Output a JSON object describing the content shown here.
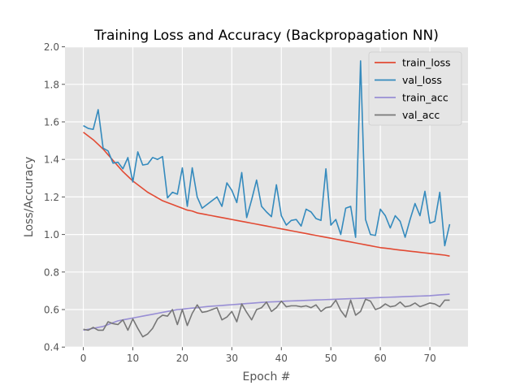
{
  "chart_data": {
    "type": "line",
    "title": "Training Loss and Accuracy (Backpropagation NN)",
    "xlabel": "Epoch #",
    "ylabel": "Loss/Accuracy",
    "xlim": [
      -3.7,
      77.7
    ],
    "ylim": [
      0.4,
      2.0
    ],
    "xticks": [
      0,
      10,
      20,
      30,
      40,
      50,
      60,
      70
    ],
    "yticks": [
      "0.4",
      "0.6",
      "0.8",
      "1.0",
      "1.2",
      "1.4",
      "1.6",
      "1.8",
      "2.0"
    ],
    "grid": true,
    "legend_position": "top-right",
    "x": [
      0,
      1,
      2,
      3,
      4,
      5,
      6,
      7,
      8,
      9,
      10,
      11,
      12,
      13,
      14,
      15,
      16,
      17,
      18,
      19,
      20,
      21,
      22,
      23,
      24,
      25,
      26,
      27,
      28,
      29,
      30,
      31,
      32,
      33,
      34,
      35,
      36,
      37,
      38,
      39,
      40,
      41,
      42,
      43,
      44,
      45,
      46,
      47,
      48,
      49,
      50,
      51,
      52,
      53,
      54,
      55,
      56,
      57,
      58,
      59,
      60,
      61,
      62,
      63,
      64,
      65,
      66,
      67,
      68,
      69,
      70,
      71,
      72,
      73,
      74
    ],
    "series": [
      {
        "name": "train_loss",
        "color": "#E24A33",
        "values": [
          1.545,
          1.525,
          1.505,
          1.48,
          1.455,
          1.425,
          1.395,
          1.365,
          1.335,
          1.31,
          1.285,
          1.265,
          1.245,
          1.225,
          1.21,
          1.195,
          1.18,
          1.17,
          1.16,
          1.15,
          1.14,
          1.13,
          1.125,
          1.115,
          1.11,
          1.105,
          1.1,
          1.095,
          1.09,
          1.085,
          1.08,
          1.075,
          1.07,
          1.065,
          1.06,
          1.055,
          1.05,
          1.045,
          1.04,
          1.035,
          1.03,
          1.025,
          1.02,
          1.015,
          1.01,
          1.005,
          1.0,
          0.995,
          0.99,
          0.985,
          0.98,
          0.975,
          0.97,
          0.965,
          0.96,
          0.955,
          0.95,
          0.945,
          0.94,
          0.935,
          0.93,
          0.927,
          0.924,
          0.92,
          0.917,
          0.914,
          0.911,
          0.908,
          0.905,
          0.902,
          0.899,
          0.896,
          0.893,
          0.89,
          0.885
        ]
      },
      {
        "name": "val_loss",
        "color": "#348ABD",
        "values": [
          1.58,
          1.565,
          1.56,
          1.665,
          1.46,
          1.445,
          1.38,
          1.385,
          1.35,
          1.41,
          1.28,
          1.44,
          1.37,
          1.375,
          1.41,
          1.4,
          1.415,
          1.195,
          1.225,
          1.215,
          1.355,
          1.15,
          1.355,
          1.2,
          1.14,
          1.16,
          1.18,
          1.2,
          1.15,
          1.275,
          1.235,
          1.17,
          1.33,
          1.09,
          1.185,
          1.29,
          1.15,
          1.12,
          1.095,
          1.265,
          1.1,
          1.05,
          1.075,
          1.08,
          1.045,
          1.135,
          1.12,
          1.085,
          1.075,
          1.35,
          1.05,
          1.08,
          1.0,
          1.14,
          1.15,
          0.985,
          1.925,
          1.08,
          1.0,
          0.995,
          1.135,
          1.1,
          1.035,
          1.1,
          1.07,
          0.985,
          1.08,
          1.165,
          1.1,
          1.23,
          1.06,
          1.07,
          1.225,
          0.94,
          1.055
        ]
      },
      {
        "name": "train_acc",
        "color": "#988ED5",
        "values": [
          0.49,
          0.495,
          0.5,
          0.505,
          0.51,
          0.52,
          0.53,
          0.54,
          0.545,
          0.55,
          0.555,
          0.56,
          0.565,
          0.57,
          0.575,
          0.58,
          0.585,
          0.59,
          0.595,
          0.6,
          0.602,
          0.605,
          0.608,
          0.61,
          0.613,
          0.616,
          0.618,
          0.62,
          0.622,
          0.624,
          0.626,
          0.628,
          0.63,
          0.632,
          0.634,
          0.636,
          0.638,
          0.64,
          0.641,
          0.642,
          0.643,
          0.645,
          0.646,
          0.647,
          0.648,
          0.649,
          0.65,
          0.651,
          0.652,
          0.653,
          0.654,
          0.655,
          0.656,
          0.657,
          0.658,
          0.659,
          0.66,
          0.661,
          0.662,
          0.663,
          0.664,
          0.665,
          0.666,
          0.667,
          0.668,
          0.669,
          0.67,
          0.671,
          0.672,
          0.673,
          0.674,
          0.676,
          0.678,
          0.68,
          0.682
        ]
      },
      {
        "name": "val_acc",
        "color": "#777777",
        "values": [
          0.495,
          0.49,
          0.505,
          0.49,
          0.49,
          0.535,
          0.525,
          0.52,
          0.545,
          0.49,
          0.55,
          0.5,
          0.455,
          0.47,
          0.5,
          0.55,
          0.57,
          0.565,
          0.6,
          0.52,
          0.6,
          0.515,
          0.58,
          0.625,
          0.585,
          0.59,
          0.6,
          0.61,
          0.545,
          0.56,
          0.59,
          0.535,
          0.63,
          0.585,
          0.545,
          0.6,
          0.61,
          0.64,
          0.59,
          0.61,
          0.645,
          0.615,
          0.62,
          0.62,
          0.615,
          0.62,
          0.61,
          0.625,
          0.59,
          0.61,
          0.615,
          0.65,
          0.595,
          0.56,
          0.65,
          0.57,
          0.59,
          0.655,
          0.645,
          0.6,
          0.61,
          0.63,
          0.615,
          0.62,
          0.64,
          0.615,
          0.62,
          0.635,
          0.615,
          0.625,
          0.635,
          0.63,
          0.615,
          0.65,
          0.65
        ]
      }
    ]
  }
}
